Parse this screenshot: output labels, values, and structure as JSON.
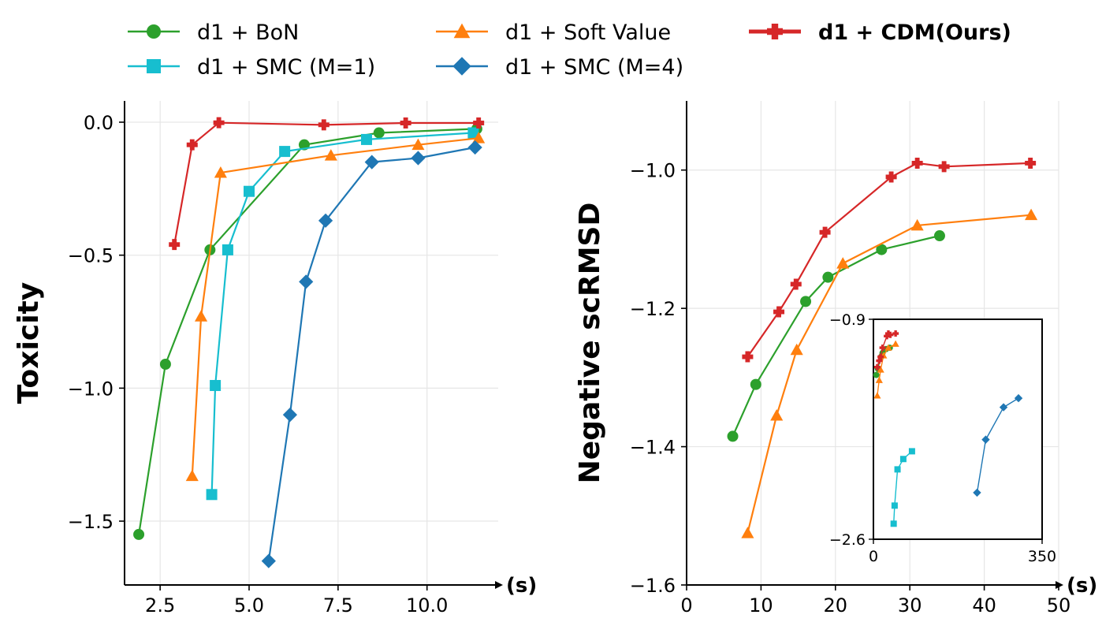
{
  "legend": {
    "entries": [
      {
        "key": "bon",
        "label": "d1 + BoN",
        "color": "#2ca02c",
        "marker": "circle",
        "bold": false
      },
      {
        "key": "sv",
        "label": "d1 + Soft Value",
        "color": "#ff7f0e",
        "marker": "triangle",
        "bold": false
      },
      {
        "key": "cdm",
        "label": "d1 + CDM(Ours)",
        "color": "#d62728",
        "marker": "plus",
        "bold": true
      },
      {
        "key": "smc1",
        "label": "d1 + SMC (M=1)",
        "color": "#17becf",
        "marker": "square",
        "bold": false
      },
      {
        "key": "smc4",
        "label": "d1 + SMC (M=4)",
        "color": "#1f77b4",
        "marker": "diamond",
        "bold": false
      }
    ]
  },
  "chart_data": [
    {
      "type": "line",
      "id": "toxicity",
      "ylabel": "Toxicity",
      "xlabel": "(s)",
      "xlim": [
        1.5,
        12.0
      ],
      "ylim": [
        -1.74,
        0.08
      ],
      "xticks": [
        2.5,
        5.0,
        7.5,
        10.0
      ],
      "xtick_labels": [
        "2.5",
        "5.0",
        "7.5",
        "10.0"
      ],
      "yticks": [
        0.0,
        -0.5,
        -1.0,
        -1.5
      ],
      "ytick_labels": [
        "0.0",
        "−0.5",
        "−1.0",
        "−1.5"
      ],
      "grid": true,
      "series": [
        {
          "name": "d1 + BoN",
          "key": "bon",
          "x": [
            1.9,
            2.65,
            3.9,
            6.55,
            8.65,
            11.4
          ],
          "y": [
            -1.55,
            -0.91,
            -0.48,
            -0.085,
            -0.04,
            -0.025
          ]
        },
        {
          "name": "d1 + SMC (M=1)",
          "key": "smc1",
          "x": [
            3.95,
            4.05,
            4.4,
            5.0,
            6.0,
            8.3,
            11.3
          ],
          "y": [
            -1.4,
            -0.99,
            -0.48,
            -0.26,
            -0.11,
            -0.065,
            -0.04
          ]
        },
        {
          "name": "d1 + Soft Value",
          "key": "sv",
          "x": [
            3.4,
            3.65,
            4.2,
            7.3,
            9.75,
            11.45
          ],
          "y": [
            -1.33,
            -0.73,
            -0.19,
            -0.125,
            -0.085,
            -0.06
          ]
        },
        {
          "name": "d1 + SMC (M=4)",
          "key": "smc4",
          "x": [
            5.55,
            6.15,
            6.6,
            7.15,
            8.45,
            9.75,
            11.35
          ],
          "y": [
            -1.65,
            -1.1,
            -0.6,
            -0.37,
            -0.15,
            -0.135,
            -0.095
          ]
        },
        {
          "name": "d1 + CDM(Ours)",
          "key": "cdm",
          "x": [
            2.9,
            3.4,
            4.15,
            7.1,
            9.4,
            11.45
          ],
          "y": [
            -0.46,
            -0.085,
            -0.002,
            -0.01,
            -0.003,
            -0.003
          ]
        }
      ]
    },
    {
      "type": "line",
      "id": "scrmsd",
      "ylabel": "Negative scRMSD",
      "xlabel": "(s)",
      "xlim": [
        0,
        50
      ],
      "ylim": [
        -1.6,
        -0.9
      ],
      "xticks": [
        0,
        10,
        20,
        30,
        40,
        50
      ],
      "xtick_labels": [
        "0",
        "10",
        "20",
        "30",
        "40",
        "50"
      ],
      "yticks": [
        -1.0,
        -1.2,
        -1.4,
        -1.6
      ],
      "ytick_labels": [
        "−1.0",
        "−1.2",
        "−1.4",
        "−1.6"
      ],
      "grid": true,
      "series": [
        {
          "name": "d1 + BoN",
          "key": "bon",
          "x": [
            6.2,
            9.3,
            16.0,
            19.0,
            26.2,
            34.0
          ],
          "y": [
            -1.385,
            -1.31,
            -1.19,
            -1.155,
            -1.115,
            -1.095
          ]
        },
        {
          "name": "d1 + Soft Value",
          "key": "sv",
          "x": [
            8.2,
            12.1,
            14.8,
            21.0,
            31.0,
            46.3
          ],
          "y": [
            -1.525,
            -1.355,
            -1.26,
            -1.135,
            -1.08,
            -1.065
          ]
        },
        {
          "name": "d1 + CDM(Ours)",
          "key": "cdm",
          "x": [
            8.2,
            12.4,
            14.7,
            18.6,
            27.5,
            31.0,
            34.6,
            46.2
          ],
          "y": [
            -1.27,
            -1.205,
            -1.165,
            -1.09,
            -1.01,
            -0.99,
            -0.995,
            -0.99
          ]
        }
      ],
      "inset": {
        "xlim": [
          0,
          350
        ],
        "ylim": [
          -2.6,
          -0.9
        ],
        "xticks": [
          0,
          350
        ],
        "xtick_labels": [
          "0",
          "350"
        ],
        "yticks": [
          -0.9,
          -2.6
        ],
        "ytick_labels": [
          "−0.9",
          "−2.6"
        ],
        "series": [
          {
            "key": "smc1",
            "x": [
              42,
              44,
              50,
              62,
              80
            ],
            "y": [
              -2.48,
              -2.34,
              -2.06,
              -1.98,
              -1.92
            ]
          },
          {
            "key": "smc4",
            "x": [
              215,
              233,
              270,
              301
            ],
            "y": [
              -2.24,
              -1.83,
              -1.58,
              -1.51
            ]
          },
          {
            "key": "bon",
            "x": [
              6,
              9,
              16,
              19,
              26,
              34
            ],
            "y": [
              -1.33,
              -1.28,
              -1.19,
              -1.16,
              -1.13,
              -1.12
            ]
          },
          {
            "key": "sv",
            "x": [
              8,
              12,
              15,
              21,
              31,
              46
            ],
            "y": [
              -1.49,
              -1.37,
              -1.29,
              -1.18,
              -1.12,
              -1.09
            ]
          },
          {
            "key": "cdm",
            "x": [
              8,
              12,
              15,
              19,
              28,
              31,
              35,
              46
            ],
            "y": [
              -1.27,
              -1.22,
              -1.19,
              -1.12,
              -1.03,
              -1.01,
              -1.02,
              -1.01
            ]
          }
        ]
      }
    }
  ]
}
